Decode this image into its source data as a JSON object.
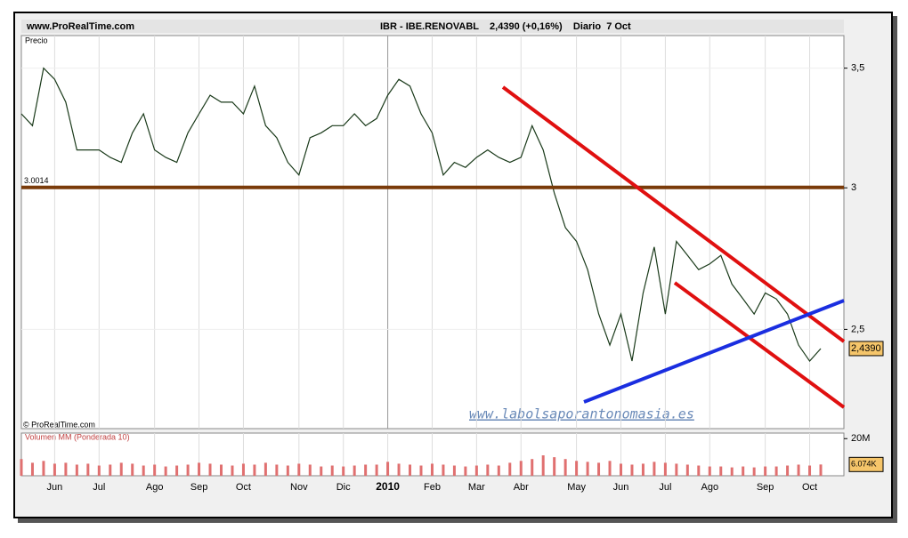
{
  "header": {
    "site": "www.ProRealTime.com",
    "title": "IBR - IBE.RENOVABL    2,4390 (+0,16%)    Diario  7 Oct",
    "watermark": "www.labolsaporantonomasia.es",
    "copyright": "© ProRealTime.com"
  },
  "chart_data": [
    {
      "type": "line",
      "title": "Precio",
      "color": "#1a3a1a",
      "log": true,
      "ylim": [
        2.2,
        3.65
      ],
      "yticks": [
        {
          "value": 3.5,
          "label": "3,5"
        },
        3,
        {
          "value": 2.5,
          "label": "2,5"
        }
      ],
      "values": [
        3.3,
        3.25,
        3.5,
        3.45,
        3.35,
        3.15,
        3.15,
        3.15,
        3.12,
        3.1,
        3.22,
        3.3,
        3.15,
        3.12,
        3.1,
        3.22,
        3.3,
        3.38,
        3.35,
        3.35,
        3.3,
        3.42,
        3.25,
        3.2,
        3.1,
        3.05,
        3.2,
        3.22,
        3.25,
        3.25,
        3.3,
        3.25,
        3.28,
        3.38,
        3.45,
        3.42,
        3.3,
        3.22,
        3.05,
        3.1,
        3.08,
        3.12,
        3.15,
        3.12,
        3.1,
        3.12,
        3.25,
        3.15,
        2.98,
        2.85,
        2.8,
        2.7,
        2.55,
        2.45,
        2.55,
        2.4,
        2.62,
        2.78,
        2.55,
        2.8,
        2.75,
        2.7,
        2.72,
        2.75,
        2.65,
        2.6,
        2.55,
        2.62,
        2.6,
        2.55,
        2.45,
        2.4,
        2.439
      ],
      "support": {
        "value": 3.0014,
        "label": "3.0014",
        "color": "#7a3b0a"
      },
      "last_price": {
        "value": 2.439,
        "label": "2,4390"
      }
    },
    {
      "type": "bar",
      "title": "Volumen MM (Ponderada 10)",
      "color": "#e07070",
      "ylim": [
        0,
        23000000
      ],
      "yticks": [
        {
          "value": 20000000,
          "label": "20M"
        }
      ],
      "categories": [
        null,
        null,
        null,
        "Jun",
        null,
        null,
        null,
        "Jul",
        null,
        null,
        null,
        null,
        "Ago",
        null,
        null,
        null,
        "Sep",
        null,
        null,
        null,
        "Oct",
        null,
        null,
        null,
        null,
        "Nov",
        null,
        null,
        null,
        "Dic",
        null,
        null,
        null,
        "2010",
        null,
        null,
        null,
        "Feb",
        null,
        null,
        null,
        "Mar",
        null,
        null,
        null,
        "Abr",
        null,
        null,
        null,
        null,
        "May",
        null,
        null,
        null,
        "Jun",
        null,
        null,
        null,
        "Jul",
        null,
        null,
        null,
        "Ago",
        null,
        null,
        null,
        null,
        "Sep",
        null,
        null,
        null,
        "Oct",
        null
      ],
      "values": [
        9000000,
        7000000,
        8000000,
        6500000,
        7000000,
        6000000,
        6500000,
        5500000,
        6000000,
        7000000,
        6500000,
        5500000,
        6000000,
        5000000,
        5500000,
        6000000,
        7000000,
        6500000,
        6000000,
        5500000,
        6500000,
        6000000,
        7000000,
        6000000,
        5500000,
        6500000,
        6000000,
        5000000,
        5500000,
        5000000,
        5500000,
        6000000,
        6000000,
        7500000,
        6500000,
        6000000,
        5500000,
        6500000,
        6000000,
        5500000,
        5000000,
        5500000,
        6000000,
        5500000,
        7000000,
        8000000,
        9000000,
        11000000,
        10000000,
        9000000,
        8000000,
        7500000,
        7000000,
        8000000,
        6500000,
        6000000,
        6500000,
        7500000,
        7000000,
        6500000,
        6000000,
        5500000,
        5000000,
        5000000,
        4500000,
        5000000,
        4500000,
        5000000,
        5000000,
        5500000,
        6000000,
        5500000,
        6074000
      ],
      "value_labels": [
        null,
        null,
        null,
        null,
        null,
        null,
        null,
        null,
        null,
        null,
        null,
        null,
        null,
        null,
        null,
        null,
        null,
        null,
        null,
        null,
        null,
        null,
        null,
        null,
        null,
        null,
        null,
        null,
        null,
        null,
        null,
        null,
        null,
        null,
        null,
        null,
        null,
        null,
        null,
        null,
        null,
        null,
        null,
        null,
        null,
        null,
        null,
        null,
        null,
        null,
        null,
        null,
        null,
        null,
        null,
        null,
        null,
        null,
        null,
        null,
        null,
        null,
        null,
        null,
        null,
        null,
        null,
        null,
        null,
        null,
        null,
        null,
        "6.074K"
      ]
    }
  ]
}
